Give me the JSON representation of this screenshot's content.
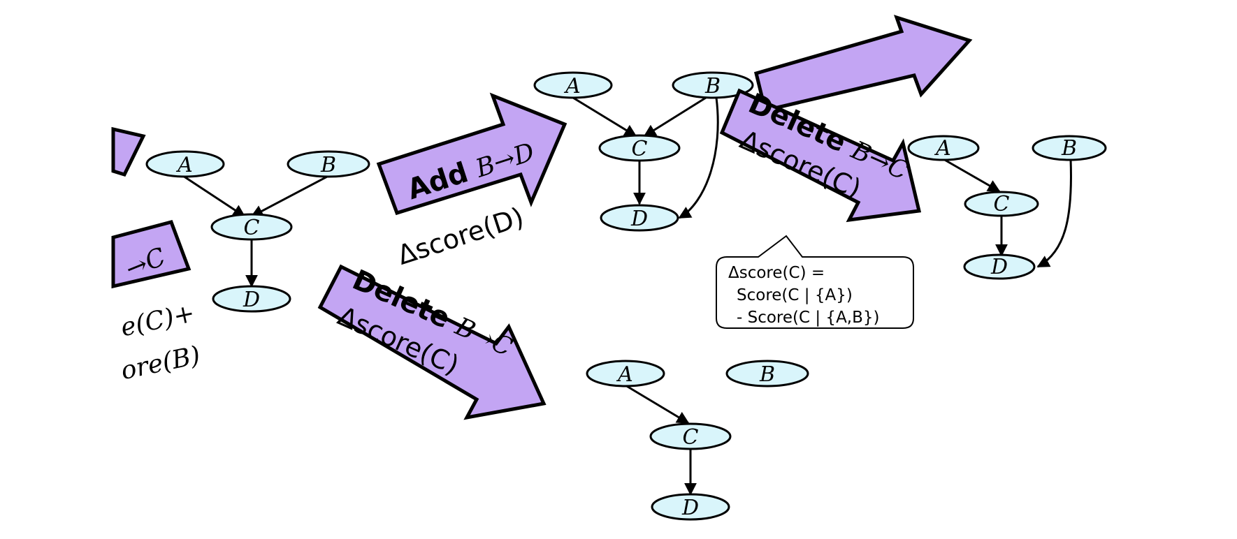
{
  "node_labels": {
    "a": "A",
    "b": "B",
    "c": "C",
    "d": "D"
  },
  "colors": {
    "arrow_fill": "#c3a5f3",
    "node_fill": "#d9f5fb"
  },
  "operations": {
    "add_b_d": {
      "verb": "Add",
      "edge": "B→D",
      "delta": "Δscore(D)"
    },
    "delete_b_c_top": {
      "verb": "Delete",
      "edge": "B→C",
      "delta": "Δscore(C)"
    },
    "delete_b_c_bottom": {
      "verb": "Delete",
      "edge": "B→C",
      "delta": "Δscore(C)"
    }
  },
  "left_fragments": {
    "arrow_label": "→C",
    "line1": "e(C)+",
    "line2": "ore(B)"
  },
  "callout": {
    "line1": "Δscore(C) =",
    "line2": "Score(C | {A})",
    "line3": "- Score(C | {A,B})"
  }
}
